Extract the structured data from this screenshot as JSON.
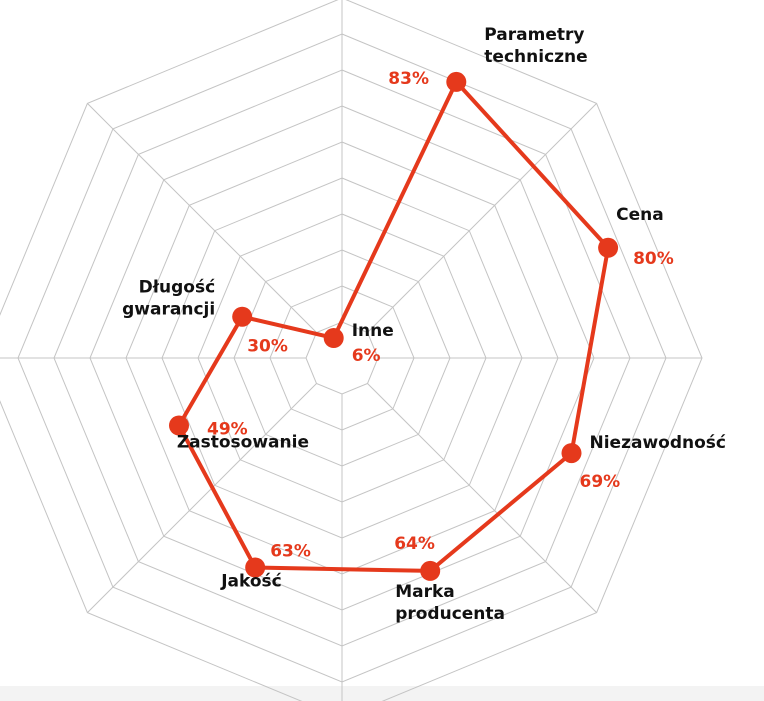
{
  "chart_data": {
    "type": "radar",
    "categories": [
      [
        "Parametry",
        "techniczne"
      ],
      [
        "Cena"
      ],
      [
        "Niezawodność"
      ],
      [
        "Marka",
        "producenta"
      ],
      [
        "Jakość"
      ],
      [
        "Zastosowanie"
      ],
      [
        "Długość",
        "gwarancji"
      ],
      [
        "Inne"
      ]
    ],
    "values": [
      83,
      80,
      69,
      64,
      63,
      49,
      30,
      6
    ],
    "value_labels": [
      "83%",
      "80%",
      "69%",
      "64%",
      "63%",
      "49%",
      "30%",
      "6%"
    ],
    "rlim": [
      0,
      100
    ],
    "grid_rings": 10,
    "series_color": "#e5391c",
    "grid_color": "#c4c4c4",
    "label_color": "#111111"
  }
}
